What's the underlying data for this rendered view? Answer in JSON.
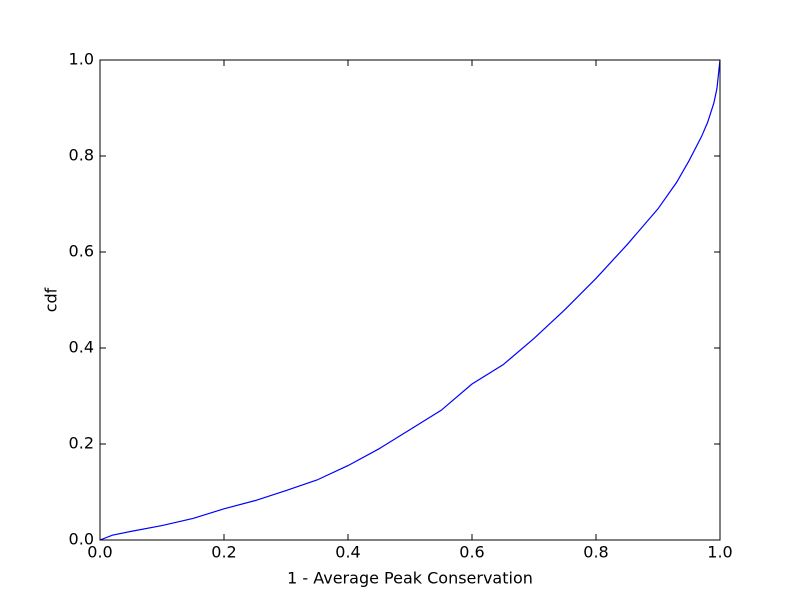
{
  "chart_data": {
    "type": "line",
    "xlabel": "1 - Average Peak Conservation",
    "ylabel": "cdf",
    "x": [
      0,
      0.02,
      0.05,
      0.1,
      0.15,
      0.2,
      0.25,
      0.3,
      0.35,
      0.4,
      0.45,
      0.5,
      0.55,
      0.6,
      0.65,
      0.7,
      0.75,
      0.8,
      0.85,
      0.9,
      0.93,
      0.95,
      0.97,
      0.98,
      0.99,
      0.995,
      1.0
    ],
    "series": [
      {
        "color": "#0000ff",
        "values": [
          0,
          0.01,
          0.018,
          0.03,
          0.045,
          0.065,
          0.082,
          0.103,
          0.125,
          0.155,
          0.19,
          0.23,
          0.27,
          0.325,
          0.365,
          0.42,
          0.48,
          0.545,
          0.615,
          0.69,
          0.745,
          0.79,
          0.84,
          0.87,
          0.91,
          0.94,
          1.0
        ]
      }
    ],
    "xlim": [
      0,
      1
    ],
    "ylim": [
      0,
      1
    ],
    "xticks": [
      {
        "value": 0,
        "label": "0.0"
      },
      0.2,
      0.4,
      0.6,
      0.8,
      {
        "value": 1,
        "label": "1.0"
      }
    ],
    "yticks": [
      {
        "value": 0,
        "label": "0.0"
      },
      0.2,
      0.4,
      0.6,
      0.8,
      {
        "value": 1,
        "label": "1.0"
      }
    ],
    "grid": false
  }
}
